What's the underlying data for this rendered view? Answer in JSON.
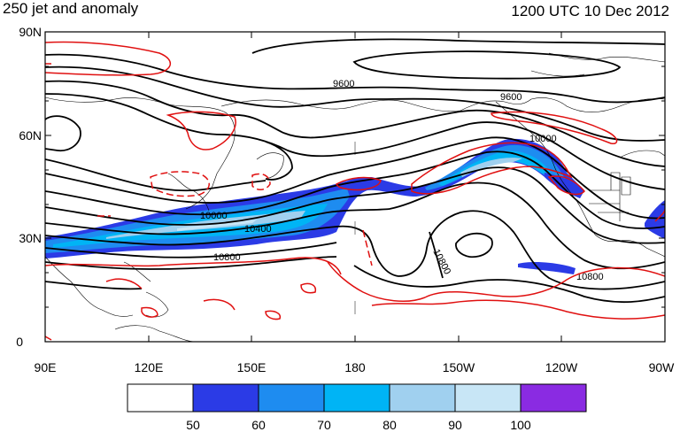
{
  "header": {
    "title": "250 jet and anomaly",
    "datetime": "1200 UTC 10 Dec 2012"
  },
  "axes": {
    "lat_labels": [
      "90N",
      "60N",
      "30N",
      "0"
    ],
    "lon_labels": [
      "90E",
      "120E",
      "150E",
      "180",
      "150W",
      "120W",
      "90W"
    ]
  },
  "contour_labels": [
    "9600",
    "9600",
    "10000",
    "10000",
    "10400",
    "10800",
    "10800",
    "10800"
  ],
  "colorbar": {
    "labels": [
      "50",
      "60",
      "70",
      "80",
      "90",
      "100"
    ],
    "colors": [
      "#ffffff",
      "#2b3be6",
      "#1e8cf0",
      "#00b4f5",
      "#a0d0ef",
      "#c8e6f6",
      "#8a2be2"
    ]
  },
  "colors": {
    "height_contour": "#000000",
    "anomaly_contour": "#e01010",
    "coastline": "#000000"
  }
}
